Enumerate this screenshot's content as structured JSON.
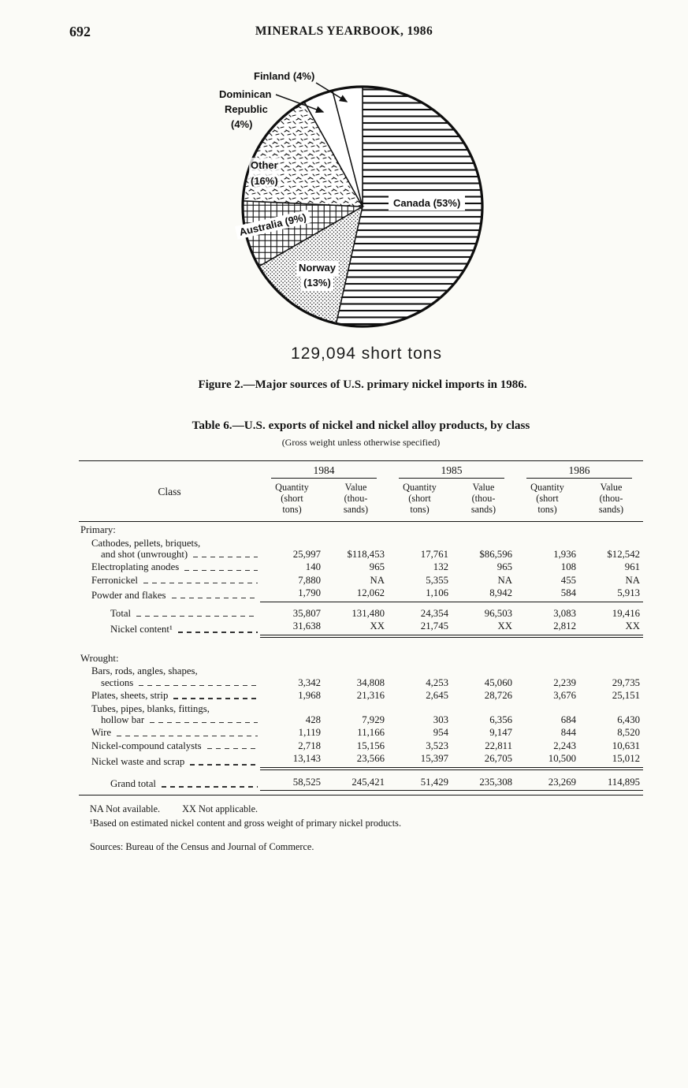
{
  "page": {
    "number": "692",
    "header": "MINERALS YEARBOOK, 1986"
  },
  "figure": {
    "total_label": "129,094 short tons",
    "caption": "Figure 2.—Major sources of U.S. primary nickel imports in 1986."
  },
  "chart_data": {
    "type": "pie",
    "title": "Major sources of U.S. primary nickel imports in 1986",
    "total_label": "129,094 short tons",
    "start_angle_deg": 0,
    "direction": "clockwise",
    "slices": [
      {
        "label": "Canada",
        "pct": 53,
        "pct_label": "(53%)",
        "pattern": "hlines"
      },
      {
        "label": "Norway",
        "pct": 13,
        "pct_label": "(13%)",
        "pattern": "dots"
      },
      {
        "label": "Australia",
        "pct": 9,
        "pct_label": "(9%)",
        "pattern": "grid"
      },
      {
        "label": "Other",
        "pct": 16,
        "pct_label": "(16%)",
        "pattern": "speckle"
      },
      {
        "label": "Dominican Republic",
        "label_lines": [
          "Dominican",
          "Republic"
        ],
        "pct": 4,
        "pct_label": "(4%)",
        "pattern": "plain"
      },
      {
        "label": "Finland",
        "pct": 4,
        "pct_label": "(4%)",
        "pattern": "plain"
      }
    ]
  },
  "table": {
    "title": "Table 6.—U.S. exports of nickel and nickel alloy products, by class",
    "subtitle": "(Gross weight unless otherwise specified)",
    "col_class": "Class",
    "years": [
      "1984",
      "1985",
      "1986"
    ],
    "subhead_quantity": "Quantity\n(short\ntons)",
    "subhead_value": "Value\n(thou-\nsands)",
    "rows": [
      {
        "type": "heading",
        "label": "Primary:"
      },
      {
        "lines": [
          "Cathodes, pellets, briquets,",
          "and shot (unwrought)"
        ],
        "v": [
          "25,997",
          "$118,453",
          "17,761",
          "$86,596",
          "1,936",
          "$12,542"
        ]
      },
      {
        "lines": [
          "Electroplating anodes"
        ],
        "v": [
          "140",
          "965",
          "132",
          "965",
          "108",
          "961"
        ]
      },
      {
        "lines": [
          "Ferronickel"
        ],
        "v": [
          "7,880",
          "NA",
          "5,355",
          "NA",
          "455",
          "NA"
        ]
      },
      {
        "lines": [
          "Powder and flakes"
        ],
        "v": [
          "1,790",
          "12,062",
          "1,106",
          "8,942",
          "584",
          "5,913"
        ]
      },
      {
        "lines": [
          "Total"
        ],
        "v": [
          "35,807",
          "131,480",
          "24,354",
          "96,503",
          "3,083",
          "19,416"
        ]
      },
      {
        "lines": [
          "Nickel content¹"
        ],
        "v": [
          "31,638",
          "XX",
          "21,745",
          "XX",
          "2,812",
          "XX"
        ]
      },
      {
        "type": "heading",
        "label": "Wrought:"
      },
      {
        "lines": [
          "Bars, rods, angles, shapes,",
          "sections"
        ],
        "v": [
          "3,342",
          "34,808",
          "4,253",
          "45,060",
          "2,239",
          "29,735"
        ]
      },
      {
        "lines": [
          "Plates, sheets, strip"
        ],
        "v": [
          "1,968",
          "21,316",
          "2,645",
          "28,726",
          "3,676",
          "25,151"
        ]
      },
      {
        "lines": [
          "Tubes, pipes, blanks, fittings,",
          "hollow bar"
        ],
        "v": [
          "428",
          "7,929",
          "303",
          "6,356",
          "684",
          "6,430"
        ]
      },
      {
        "lines": [
          "Wire"
        ],
        "v": [
          "1,119",
          "11,166",
          "954",
          "9,147",
          "844",
          "8,520"
        ]
      },
      {
        "lines": [
          "Nickel-compound catalysts"
        ],
        "v": [
          "2,718",
          "15,156",
          "3,523",
          "22,811",
          "2,243",
          "10,631"
        ]
      },
      {
        "lines": [
          "Nickel waste and scrap"
        ],
        "v": [
          "13,143",
          "23,566",
          "15,397",
          "26,705",
          "10,500",
          "15,012"
        ]
      },
      {
        "lines": [
          "Grand total"
        ],
        "v": [
          "58,525",
          "245,421",
          "51,429",
          "235,308",
          "23,269",
          "114,895"
        ]
      }
    ],
    "footnotes": {
      "line1a": "NA Not available.",
      "line1b": "XX Not applicable.",
      "line2": "¹Based on estimated nickel content and gross weight of primary nickel products.",
      "sources": "Sources: Bureau of the Census and Journal of Commerce."
    }
  }
}
